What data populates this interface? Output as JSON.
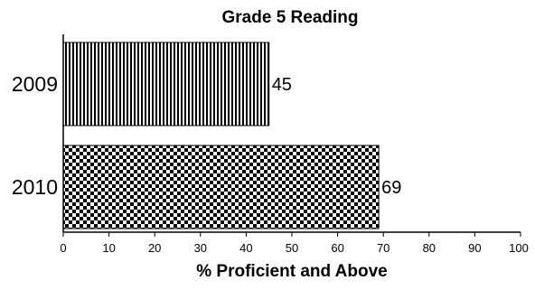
{
  "chart_data": {
    "type": "bar",
    "orientation": "horizontal",
    "title": "Grade 5 Reading",
    "xlabel": "% Proficient and Above",
    "ylabel": "",
    "categories": [
      "2009",
      "2010"
    ],
    "values": [
      45,
      69
    ],
    "data_labels": [
      "45",
      "69"
    ],
    "xlim": [
      0,
      100
    ],
    "xticks": [
      "0",
      "10",
      "20",
      "30",
      "40",
      "50",
      "60",
      "70",
      "80",
      "90",
      "100"
    ],
    "grid": false,
    "bar_patterns": [
      "vertical-stripes",
      "checkerboard"
    ],
    "colors": {
      "bar_ink": "#000000",
      "background": "#ffffff"
    }
  }
}
